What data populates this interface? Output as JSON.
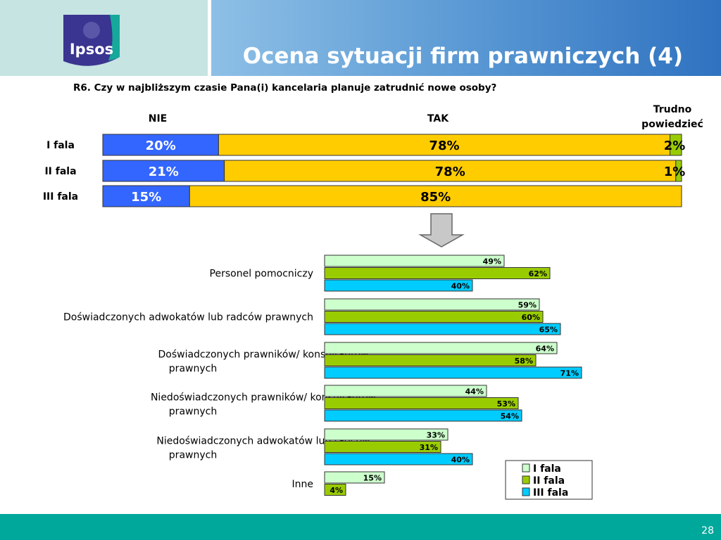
{
  "header": {
    "title": "Ocena sytuacji firm prawniczych (4)",
    "logo_text": "Ipsos"
  },
  "question": "R6. Czy w najbliższym czasie Pana(i) kancelaria planuje zatrudnić nowe osoby?",
  "page_number": "28",
  "colors": {
    "nie": "#3366ff",
    "tak": "#ffcc00",
    "trudno": "#99cc00",
    "wave1": "#ccffcc",
    "wave2": "#99cc00",
    "wave3": "#00ccff",
    "footer": "#00a89c"
  },
  "chart_data": [
    {
      "type": "bar",
      "stacked": true,
      "orientation": "horizontal",
      "categories": [
        "I fala",
        "II fala",
        "III fala"
      ],
      "series": [
        {
          "name": "NIE",
          "values": [
            20,
            21,
            15
          ],
          "labels": [
            "20%",
            "21%",
            "15%"
          ]
        },
        {
          "name": "TAK",
          "values": [
            78,
            78,
            85
          ],
          "labels": [
            "78%",
            "78%",
            "85%"
          ]
        },
        {
          "name": "Trudno powiedzieć",
          "values": [
            2,
            1,
            0
          ],
          "labels": [
            "2%",
            "1%",
            ""
          ]
        }
      ],
      "xlim": [
        0,
        100
      ]
    },
    {
      "type": "bar",
      "orientation": "horizontal",
      "categories": [
        "Personel pomocniczy",
        "Doświadczonych adwokatów lub radców prawnych",
        "Doświadczonych prawników/ konsultantów prawnych",
        "Niedoświadczonych prawników/ konsultantów prawnych",
        "Niedoświadczonych adwokatów lub radców prawnych",
        "Inne"
      ],
      "series": [
        {
          "name": "I fala",
          "values": [
            49,
            59,
            64,
            44,
            33,
            15
          ],
          "labels": [
            "49%",
            "59%",
            "64%",
            "44%",
            "33%",
            "15%"
          ]
        },
        {
          "name": "II fala",
          "values": [
            62,
            60,
            58,
            53,
            31,
            4
          ],
          "labels": [
            "62%",
            "60%",
            "58%",
            "53%",
            "31%",
            "4%"
          ]
        },
        {
          "name": "III fala",
          "values": [
            40,
            65,
            71,
            54,
            40,
            null
          ],
          "labels": [
            "40%",
            "65%",
            "71%",
            "54%",
            "40%",
            ""
          ]
        }
      ],
      "xlim": [
        0,
        100
      ],
      "legend_position": "bottom-right"
    }
  ]
}
